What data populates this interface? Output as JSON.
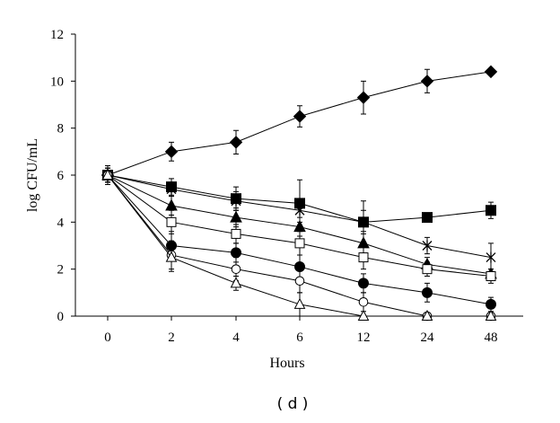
{
  "chart_data": {
    "type": "line",
    "panel_label": "( d )",
    "xlabel": "Hours",
    "ylabel": "log CFU/mL",
    "categories": [
      "0",
      "2",
      "4",
      "6",
      "12",
      "24",
      "48"
    ],
    "ylim": [
      0,
      12
    ],
    "yticks": [
      "0",
      "2",
      "4",
      "6",
      "8",
      "10",
      "12"
    ],
    "grid": false,
    "series": [
      {
        "name": "filled-diamond",
        "marker": "diamond-filled",
        "values": [
          6.0,
          7.0,
          7.4,
          8.5,
          9.3,
          10.0,
          10.4
        ],
        "errors": [
          0.4,
          0.4,
          0.5,
          0.45,
          0.7,
          0.5,
          0.0
        ]
      },
      {
        "name": "filled-square",
        "marker": "square-filled",
        "values": [
          6.0,
          5.5,
          5.0,
          4.8,
          4.0,
          4.2,
          4.5
        ],
        "errors": [
          0.4,
          0.35,
          0.5,
          1.0,
          0.9,
          0.0,
          0.35
        ]
      },
      {
        "name": "star",
        "marker": "star",
        "values": [
          6.0,
          5.4,
          4.9,
          4.5,
          4.0,
          3.0,
          2.5
        ],
        "errors": [
          0.3,
          0.3,
          0.4,
          0.5,
          0.5,
          0.35,
          0.6
        ]
      },
      {
        "name": "filled-triangle",
        "marker": "triangle-filled",
        "values": [
          6.0,
          4.7,
          4.2,
          3.8,
          3.1,
          2.2,
          1.8
        ],
        "errors": [
          0.3,
          0.4,
          0.4,
          0.4,
          0.5,
          0.3,
          0.2
        ]
      },
      {
        "name": "open-square",
        "marker": "square-open",
        "values": [
          6.0,
          4.0,
          3.5,
          3.1,
          2.5,
          2.0,
          1.7
        ],
        "errors": [
          0.3,
          0.5,
          0.4,
          0.5,
          0.5,
          0.3,
          0.3
        ]
      },
      {
        "name": "filled-circle",
        "marker": "circle-filled",
        "values": [
          6.0,
          3.0,
          2.7,
          2.1,
          1.4,
          1.0,
          0.5
        ],
        "errors": [
          0.3,
          0.6,
          0.4,
          0.5,
          0.4,
          0.4,
          0.3
        ]
      },
      {
        "name": "open-circle",
        "marker": "circle-open",
        "values": [
          6.0,
          2.6,
          2.0,
          1.5,
          0.6,
          0.0,
          0.0
        ],
        "errors": [
          0.3,
          0.6,
          0.5,
          0.5,
          0.4,
          0.0,
          0.0
        ]
      },
      {
        "name": "open-triangle",
        "marker": "triangle-open",
        "values": [
          6.0,
          2.5,
          1.4,
          0.5,
          0.0,
          0.0,
          0.0
        ],
        "errors": [
          0.3,
          0.6,
          0.3,
          0.5,
          0.0,
          0.0,
          0.0
        ]
      }
    ]
  }
}
